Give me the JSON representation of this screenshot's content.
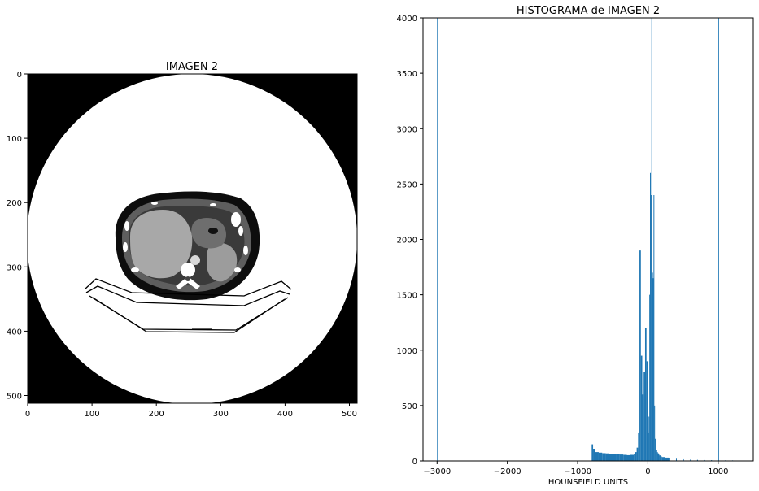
{
  "figure": {
    "left_panel": {
      "title": "IMAGEN 2",
      "x_ticks": [
        "0",
        "100",
        "200",
        "300",
        "400",
        "500"
      ],
      "y_ticks": [
        "0",
        "100",
        "200",
        "300",
        "400",
        "500"
      ],
      "image_size": [
        512,
        512
      ]
    },
    "right_panel": {
      "title": "HISTOGRAMA de IMAGEN 2",
      "xlabel": "HOUNSFIELD UNITS",
      "x_ticks": [
        "−3000",
        "−2000",
        "−1000",
        "0",
        "1000"
      ],
      "y_ticks": [
        "0",
        "500",
        "1000",
        "1500",
        "2000",
        "2500",
        "3000",
        "3500",
        "4000"
      ]
    }
  },
  "chart_data": [
    {
      "type": "image",
      "title": "IMAGEN 2",
      "xlim": [
        0,
        512
      ],
      "ylim": [
        512,
        0
      ],
      "colormap": "gray"
    },
    {
      "type": "bar",
      "title": "HISTOGRAMA de IMAGEN 2",
      "xlabel": "HOUNSFIELD UNITS",
      "ylabel": "",
      "xlim": [
        -3200,
        1500
      ],
      "ylim": [
        0,
        4000
      ],
      "bar_color": "#1f77b4",
      "x": [
        -3000,
        -800,
        -780,
        -750,
        -700,
        -650,
        -600,
        -550,
        -500,
        -450,
        -400,
        -350,
        -300,
        -250,
        -200,
        -180,
        -160,
        -140,
        -120,
        -100,
        -80,
        -60,
        -40,
        -20,
        0,
        10,
        20,
        30,
        40,
        50,
        60,
        70,
        80,
        90,
        100,
        110,
        120,
        130,
        140,
        150,
        160,
        180,
        200,
        250,
        300,
        400,
        500,
        600,
        700,
        800,
        900,
        1000,
        1100,
        1200
      ],
      "values": [
        4000,
        150,
        110,
        80,
        75,
        70,
        68,
        65,
        62,
        60,
        58,
        55,
        52,
        55,
        60,
        80,
        120,
        250,
        1900,
        950,
        600,
        800,
        1200,
        900,
        250,
        400,
        1500,
        2600,
        2400,
        4000,
        1700,
        1650,
        2400,
        500,
        200,
        150,
        100,
        80,
        70,
        60,
        50,
        40,
        35,
        30,
        25,
        20,
        15,
        12,
        10,
        8,
        7,
        4000,
        6,
        5
      ]
    }
  ]
}
